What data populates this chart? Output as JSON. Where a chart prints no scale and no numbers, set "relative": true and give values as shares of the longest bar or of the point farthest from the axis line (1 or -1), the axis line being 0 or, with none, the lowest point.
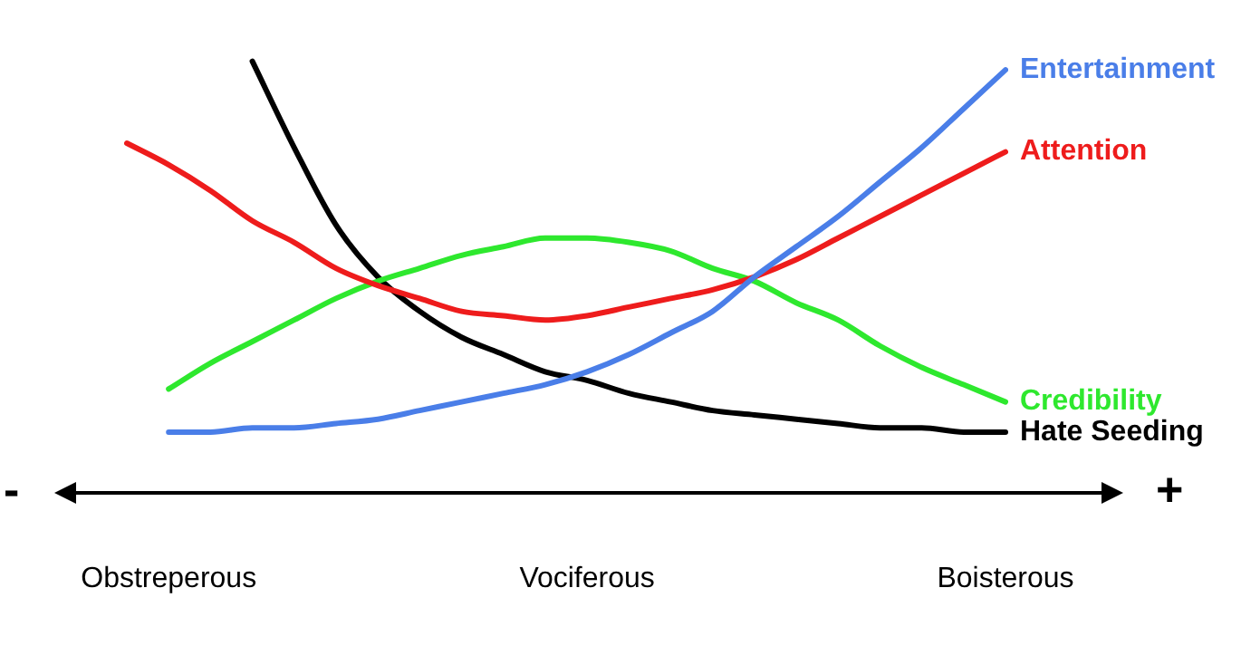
{
  "chart_data": {
    "type": "line",
    "relative": true,
    "legend": false,
    "grid": false,
    "marker": "none",
    "line_style": "solid",
    "categories": [
      null,
      "Obstreperous",
      null,
      null,
      null,
      null,
      null,
      null,
      null,
      null,
      null,
      "Vociferous",
      null,
      null,
      null,
      null,
      null,
      null,
      null,
      null,
      null,
      "Boisterous"
    ],
    "series": [
      {
        "name": "Entertainment",
        "color": "#4a7ee8",
        "values": [
          null,
          0.14,
          0.14,
          0.15,
          0.15,
          0.16,
          0.17,
          0.19,
          0.21,
          0.23,
          0.25,
          0.28,
          0.32,
          0.37,
          0.42,
          0.5,
          0.57,
          0.64,
          0.72,
          0.8,
          0.89,
          0.98
        ]
      },
      {
        "name": "Attention",
        "color": "#ee1c1c",
        "values": [
          0.81,
          0.76,
          0.7,
          0.63,
          0.58,
          0.52,
          0.48,
          0.45,
          0.42,
          0.41,
          0.4,
          0.41,
          0.43,
          0.45,
          0.47,
          0.5,
          0.54,
          0.59,
          0.64,
          0.69,
          0.74,
          0.79
        ]
      },
      {
        "name": "Credibility",
        "color": "#2ee82e",
        "values": [
          null,
          0.24,
          0.3,
          0.35,
          0.4,
          0.45,
          0.49,
          0.52,
          0.55,
          0.57,
          0.59,
          0.59,
          0.58,
          0.56,
          0.52,
          0.49,
          0.44,
          0.4,
          0.34,
          0.29,
          0.25,
          0.21
        ]
      },
      {
        "name": "Hate Seeding",
        "color": "#000000",
        "values": [
          null,
          null,
          null,
          1.0,
          0.8,
          0.62,
          0.5,
          0.42,
          0.36,
          0.32,
          0.28,
          0.26,
          0.23,
          0.21,
          0.19,
          0.18,
          0.17,
          0.16,
          0.15,
          0.15,
          0.14,
          0.14
        ]
      }
    ],
    "annotations": [
      "-",
      "+"
    ]
  }
}
